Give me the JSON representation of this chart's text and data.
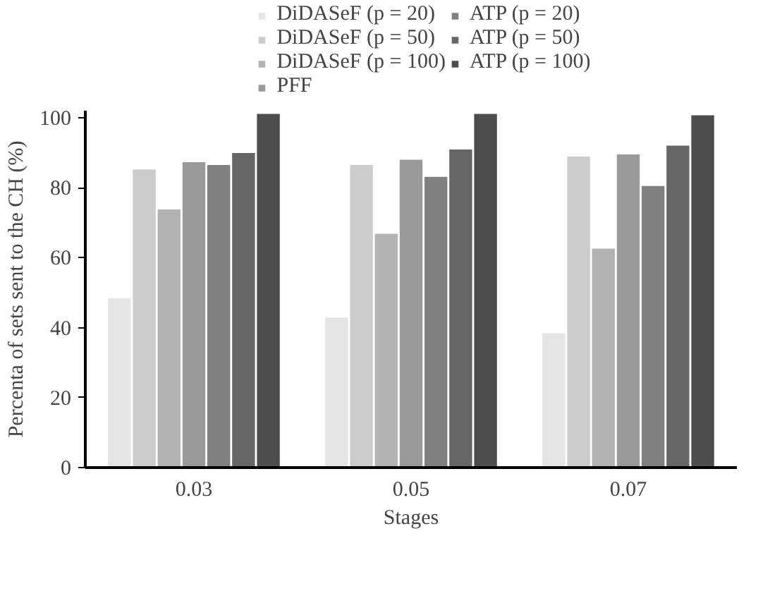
{
  "chart_data": {
    "type": "bar",
    "xlabel": "Stages",
    "ylabel": "Percenta of sets sent to the CH (%)",
    "categories": [
      "0.03",
      "0.05",
      "0.07"
    ],
    "series": [
      {
        "name": "DiDASeF (p = 20)",
        "color": "#e5e5e5",
        "values": [
          48.4,
          42.9,
          38.4
        ]
      },
      {
        "name": "DiDASeF (p = 50)",
        "color": "#cccccc",
        "values": [
          85.2,
          86.5,
          88.9
        ]
      },
      {
        "name": "DiDASeF (p = 100)",
        "color": "#b3b3b3",
        "values": [
          73.8,
          66.8,
          62.6
        ]
      },
      {
        "name": "PFF",
        "color": "#999999",
        "values": [
          87.3,
          88.0,
          89.5
        ]
      },
      {
        "name": "ATP (p = 20)",
        "color": "#808080",
        "values": [
          86.5,
          83.1,
          80.5
        ]
      },
      {
        "name": "ATP (p = 50)",
        "color": "#666666",
        "values": [
          89.9,
          90.9,
          92.0
        ]
      },
      {
        "name": "ATP (p = 100)",
        "color": "#4d4d4d",
        "values": [
          101.1,
          101.1,
          100.7
        ]
      }
    ],
    "ylim": [
      0,
      102
    ],
    "yticks": [
      0,
      20,
      40,
      60,
      80,
      100
    ],
    "grid": false,
    "legend": "top"
  }
}
